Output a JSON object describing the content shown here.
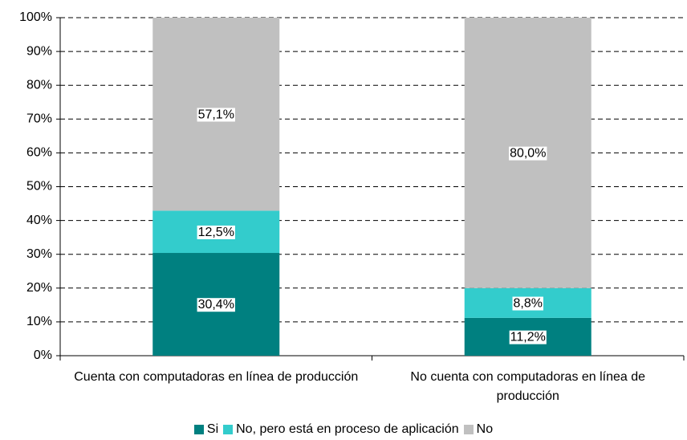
{
  "chart_data": {
    "type": "stacked_bar",
    "categories": [
      "Cuenta con computadoras en línea de producción",
      "No cuenta con computadoras en línea de producción"
    ],
    "series": [
      {
        "name": "Si",
        "color": "#008080",
        "values": [
          30.4,
          11.2
        ],
        "value_labels": [
          "30,4%",
          "11,2%"
        ]
      },
      {
        "name": "No, pero está en proceso de aplicación",
        "color": "#33cccc",
        "values": [
          12.5,
          8.8
        ],
        "value_labels": [
          "12,5%",
          "8,8%"
        ]
      },
      {
        "name": "No",
        "color": "#c0c0c0",
        "values": [
          57.1,
          80.0
        ],
        "value_labels": [
          "57,1%",
          "80,0%"
        ]
      }
    ],
    "ylim": [
      0,
      100
    ],
    "yticks": [
      {
        "value": 0,
        "label": "0%"
      },
      {
        "value": 10,
        "label": "10%"
      },
      {
        "value": 20,
        "label": "20%"
      },
      {
        "value": 30,
        "label": "30%"
      },
      {
        "value": 40,
        "label": "40%"
      },
      {
        "value": 50,
        "label": "50%"
      },
      {
        "value": 60,
        "label": "60%"
      },
      {
        "value": 70,
        "label": "70%"
      },
      {
        "value": 80,
        "label": "80%"
      },
      {
        "value": 90,
        "label": "90%"
      },
      {
        "value": 100,
        "label": "100%"
      }
    ],
    "grid": true,
    "legend": "bottom"
  }
}
